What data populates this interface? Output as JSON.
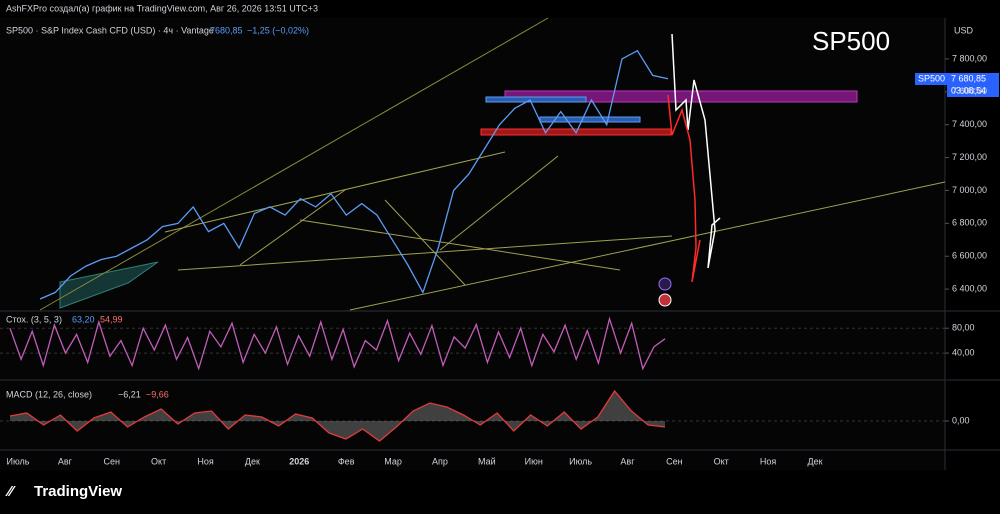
{
  "header": "AshFXPro создал(а) график на TradingView.com, Авг 26, 2026 13:51 UTC+3",
  "footer": "TradingView",
  "chart_data": [
    {
      "type": "line",
      "legend": {
        "symbol": "SP500 · S&P Index Cash CFD (USD) · 4ч · Vantage",
        "last": "7680,85",
        "change": "−1,25 (−0,02%)"
      },
      "watermark": "SP500",
      "currency": "USD",
      "price_tag": {
        "symbol": "SP500",
        "price": "7 680,85",
        "countdown": "03:08:54"
      },
      "month_labels": [
        "Июль",
        "Авг",
        "Сен",
        "Окт",
        "Ноя",
        "Дек",
        "2026",
        "Фев",
        "Мар",
        "Апр",
        "Май",
        "Июн",
        "Июль",
        "Авг",
        "Сен",
        "Окт",
        "Ноя",
        "Дек"
      ],
      "ylim": [
        6273,
        8049
      ],
      "yticks": [
        {
          "value": 7800,
          "label": "7 800,00"
        },
        {
          "value": 7600,
          "label": "7 600,00"
        },
        {
          "value": 7400,
          "label": "7 400,00"
        },
        {
          "value": 7200,
          "label": "7 200,00"
        },
        {
          "value": 7000,
          "label": "7 000,00"
        },
        {
          "value": 6800,
          "label": "6 800,00"
        },
        {
          "value": 6600,
          "label": "6 600,00"
        },
        {
          "value": 6400,
          "label": "6 400,00"
        }
      ],
      "series": [
        {
          "name": "SP500",
          "color": "#5b9cf6",
          "values": [
            6340,
            6380,
            6480,
            6540,
            6580,
            6600,
            6650,
            6700,
            6780,
            6800,
            6900,
            6750,
            6800,
            6650,
            6860,
            6900,
            6850,
            6950,
            6900,
            6980,
            6850,
            6920,
            6850,
            6700,
            6550,
            6380,
            6650,
            7000,
            7100,
            7250,
            7400,
            7500,
            7550,
            7350,
            7480,
            7350,
            7550,
            7400,
            7800,
            7850,
            7700,
            7680
          ]
        }
      ]
    },
    {
      "type": "line",
      "legend": {
        "name": "Стох. (3, 5, 3)",
        "k": "63,20",
        "d": "54,99"
      },
      "ylim": [
        0,
        106
      ],
      "yticks": [
        {
          "value": 80,
          "label": "80,00"
        },
        {
          "value": 40,
          "label": "40,00"
        }
      ],
      "series": [
        {
          "name": "Stoch",
          "color": "#c25db8",
          "values": [
            80,
            30,
            75,
            20,
            85,
            40,
            70,
            25,
            90,
            35,
            60,
            20,
            80,
            45,
            85,
            30,
            65,
            15,
            75,
            50,
            88,
            25,
            70,
            40,
            82,
            22,
            68,
            35,
            90,
            30,
            78,
            18,
            60,
            45,
            92,
            28,
            72,
            38,
            84,
            20,
            66,
            48,
            86,
            25,
            74,
            33,
            80,
            20,
            70,
            42,
            85,
            30,
            76,
            24,
            95,
            40,
            88,
            15,
            50,
            63
          ]
        }
      ]
    },
    {
      "type": "line",
      "legend": {
        "name": "MACD (12, 26, close)",
        "macd": "−6,21",
        "signal": "−9,66"
      },
      "ylim": [
        -27,
        39
      ],
      "yticks": [
        {
          "value": 0,
          "label": "0,00"
        }
      ],
      "series": [
        {
          "name": "MACD",
          "color": "#e23b3b",
          "values": [
            5,
            8,
            -4,
            6,
            -10,
            3,
            9,
            -6,
            4,
            12,
            -3,
            8,
            10,
            -8,
            6,
            4,
            -5,
            7,
            3,
            -12,
            -18,
            -8,
            -20,
            -6,
            10,
            18,
            14,
            6,
            -4,
            8,
            -10,
            6,
            -5,
            9,
            -8,
            4,
            30,
            10,
            -4,
            -6
          ]
        }
      ]
    }
  ]
}
